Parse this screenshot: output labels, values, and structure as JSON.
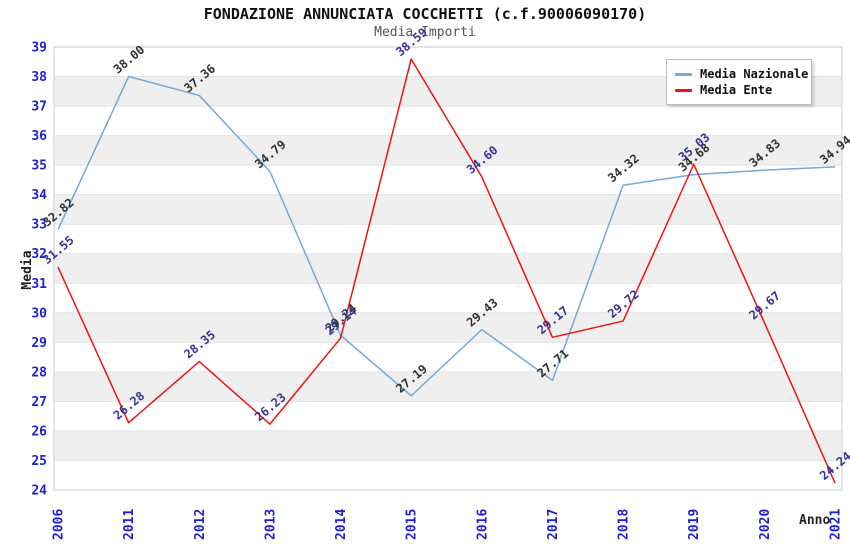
{
  "chart_data": {
    "type": "line",
    "title": "FONDAZIONE ANNUNCIATA COCCHETTI (c.f.90006090170)",
    "subtitle": "Media Importi",
    "xlabel": "Anno",
    "ylabel": "Media",
    "ylim": [
      24,
      39
    ],
    "yticks": [
      24,
      25,
      26,
      27,
      28,
      29,
      30,
      31,
      32,
      33,
      34,
      35,
      36,
      37,
      38,
      39
    ],
    "categories": [
      "2006",
      "2011",
      "2012",
      "2013",
      "2014",
      "2015",
      "2016",
      "2017",
      "2018",
      "2019",
      "2020",
      "2021"
    ],
    "series": [
      {
        "name": "Media Nazionale",
        "color": "#74a9d8",
        "label_color": "#303030",
        "values": [
          32.82,
          38.0,
          37.36,
          34.79,
          29.24,
          27.19,
          29.43,
          27.71,
          34.32,
          34.68,
          34.83,
          34.94
        ]
      },
      {
        "name": "Media Ente",
        "color": "#ee1414",
        "label_color": "#333399",
        "values": [
          31.55,
          26.28,
          28.35,
          26.23,
          29.14,
          38.59,
          34.6,
          29.17,
          29.72,
          35.03,
          29.67,
          24.24
        ]
      }
    ],
    "legend_position": "top-right",
    "grid": "horizontal alternating bands",
    "colors": {
      "tick_label": "#2020cf",
      "band": "#efefef",
      "gridline": "#e2e2e2",
      "plot_border": "#c9c9c9",
      "title": "#111111",
      "subtitle": "#555555"
    }
  }
}
